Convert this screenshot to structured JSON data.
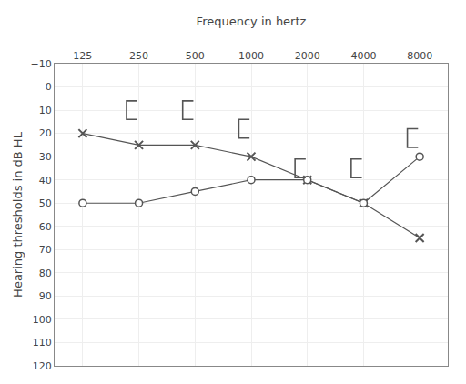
{
  "chart_data": {
    "type": "line",
    "xlabel": "Frequency in hertz",
    "ylabel": "Hearing thresholds in dB HL",
    "categories": [
      "125",
      "250",
      "500",
      "1000",
      "2000",
      "4000",
      "8000"
    ],
    "series": [
      {
        "type": "line",
        "color": "#555555",
        "marker": "x",
        "values": [
          20,
          25,
          25,
          30,
          40,
          50,
          65
        ]
      },
      {
        "type": "line",
        "color": "#555555",
        "marker": "circle",
        "values": [
          50,
          50,
          45,
          40,
          40,
          50,
          30
        ]
      },
      {
        "type": "scatter",
        "color": "#555555",
        "marker": "bracket",
        "values": [
          null,
          10,
          10,
          18,
          35,
          35,
          22
        ]
      }
    ],
    "ylim": [
      120,
      -10
    ],
    "yticks": [
      {
        "value": -10,
        "label": "−10"
      },
      0,
      10,
      20,
      30,
      40,
      50,
      60,
      70,
      80,
      90,
      100,
      110,
      120
    ],
    "grid": true
  }
}
